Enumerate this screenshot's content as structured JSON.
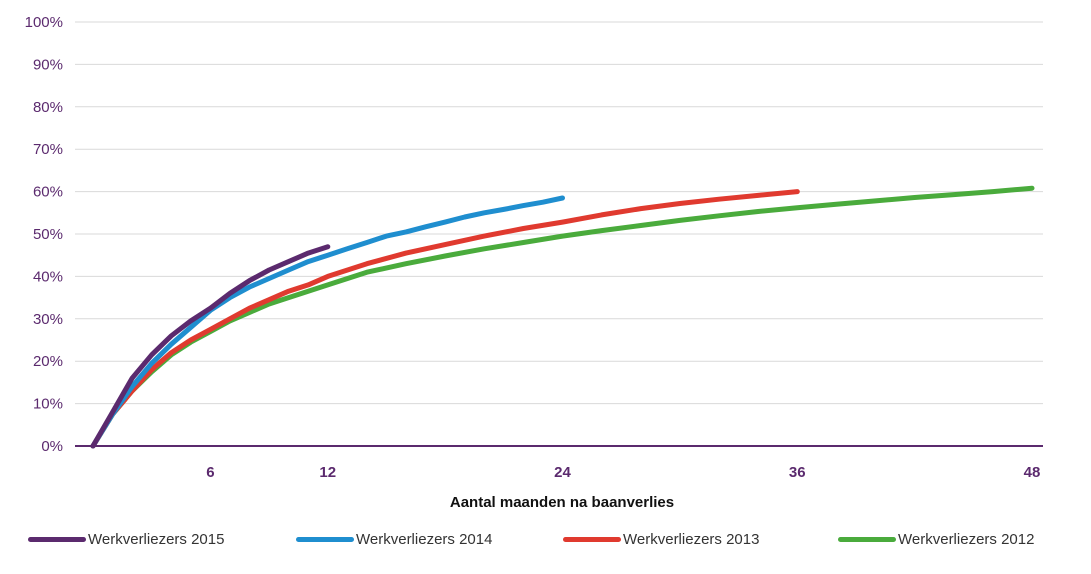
{
  "chart_data": {
    "type": "line",
    "title": "",
    "xlabel": "Aantal maanden na baanverlies",
    "ylabel": "",
    "xlim": [
      0,
      48
    ],
    "ylim": [
      0,
      100
    ],
    "x_ticks": [
      6,
      12,
      24,
      36,
      48
    ],
    "y_ticks": [
      0,
      10,
      20,
      30,
      40,
      50,
      60,
      70,
      80,
      90,
      100
    ],
    "y_tick_labels": [
      "0%",
      "10%",
      "20%",
      "30%",
      "40%",
      "50%",
      "60%",
      "70%",
      "80%",
      "90%",
      "100%"
    ],
    "grid": true,
    "legend_position": "bottom",
    "series": [
      {
        "name": "Werkverliezers 2015",
        "color": "#5b2a6e",
        "x": [
          0,
          1,
          2,
          3,
          4,
          5,
          6,
          7,
          8,
          9,
          10,
          11,
          12
        ],
        "y": [
          0,
          8,
          16,
          21.5,
          26,
          29.5,
          32.5,
          36,
          39,
          41.5,
          43.5,
          45.5,
          47
        ]
      },
      {
        "name": "Werkverliezers 2014",
        "color": "#1f8ecf",
        "x": [
          0,
          1,
          2,
          3,
          4,
          5,
          6,
          7,
          8,
          9,
          10,
          11,
          12,
          13,
          14,
          15,
          16,
          17,
          18,
          19,
          20,
          21,
          22,
          23,
          24
        ],
        "y": [
          0,
          7.5,
          14,
          19.5,
          24,
          28,
          32,
          35,
          37.5,
          39.5,
          41.5,
          43.5,
          45,
          46.5,
          48,
          49.5,
          50.5,
          51.7,
          52.8,
          54,
          55,
          55.8,
          56.7,
          57.5,
          58.5
        ]
      },
      {
        "name": "Werkverliezers 2013",
        "color": "#e03a2f",
        "x": [
          0,
          1,
          2,
          3,
          4,
          5,
          6,
          7,
          8,
          9,
          10,
          11,
          12,
          14,
          16,
          18,
          20,
          22,
          24,
          26,
          28,
          30,
          32,
          34,
          36
        ],
        "y": [
          0,
          7.5,
          13,
          18,
          22,
          25,
          27.5,
          30,
          32.5,
          34.5,
          36.5,
          38,
          40,
          43,
          45.5,
          47.5,
          49.5,
          51.3,
          52.8,
          54.5,
          56,
          57.2,
          58.2,
          59.1,
          60
        ]
      },
      {
        "name": "Werkverliezers 2012",
        "color": "#4aab3c",
        "x": [
          0,
          1,
          2,
          3,
          4,
          5,
          6,
          7,
          8,
          9,
          10,
          11,
          12,
          14,
          16,
          18,
          20,
          22,
          24,
          26,
          28,
          30,
          32,
          34,
          36,
          38,
          40,
          42,
          44,
          46,
          48
        ],
        "y": [
          0,
          7.5,
          13,
          17.5,
          21.5,
          24.5,
          27,
          29.5,
          31.5,
          33.5,
          35,
          36.5,
          38,
          41,
          43,
          44.8,
          46.5,
          48,
          49.5,
          50.8,
          52,
          53.2,
          54.3,
          55.3,
          56.2,
          57,
          57.8,
          58.6,
          59.3,
          60,
          60.8
        ]
      }
    ]
  }
}
